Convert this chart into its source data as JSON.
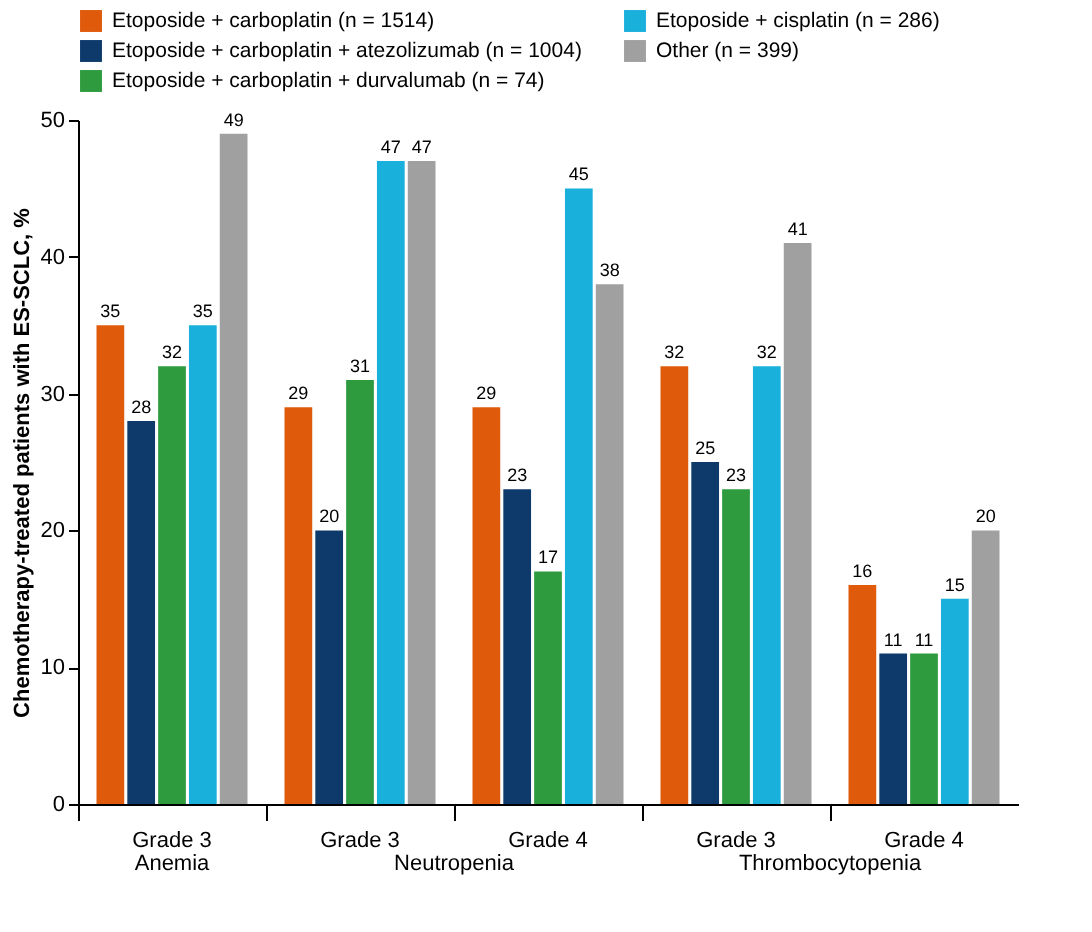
{
  "chart_data": {
    "type": "bar",
    "ylabel": "Chemotherapy-treated patients with ES-SCLC, %",
    "categories": [
      "Grade 3",
      "Grade 3",
      "Grade 4",
      "Grade 3",
      "Grade 4"
    ],
    "series": [
      {
        "name": "Etoposide + carboplatin (n = 1514)",
        "color": "#e05a0c",
        "values": [
          35,
          29,
          29,
          32,
          16
        ]
      },
      {
        "name": "Etoposide + carboplatin + atezolizumab (n = 1004)",
        "color": "#0d3a6b",
        "values": [
          28,
          20,
          23,
          25,
          11
        ]
      },
      {
        "name": "Etoposide + carboplatin + durvalumab (n = 74)",
        "color": "#2e9b3e",
        "values": [
          32,
          31,
          17,
          23,
          11
        ]
      },
      {
        "name": "Etoposide + cisplatin (n = 286)",
        "color": "#1ab0dc",
        "values": [
          35,
          47,
          45,
          32,
          15
        ]
      },
      {
        "name": "Other (n = 399)",
        "color": "#a0a0a0",
        "values": [
          49,
          47,
          38,
          41,
          20
        ]
      }
    ],
    "ylim": [
      0,
      50
    ],
    "yticks": [
      0,
      10,
      20,
      30,
      40,
      50
    ],
    "grid": false,
    "legend": "top",
    "data_labels": true,
    "annotations": [
      "Anemia",
      "Neutropenia",
      "Thrombocytopenia"
    ]
  }
}
